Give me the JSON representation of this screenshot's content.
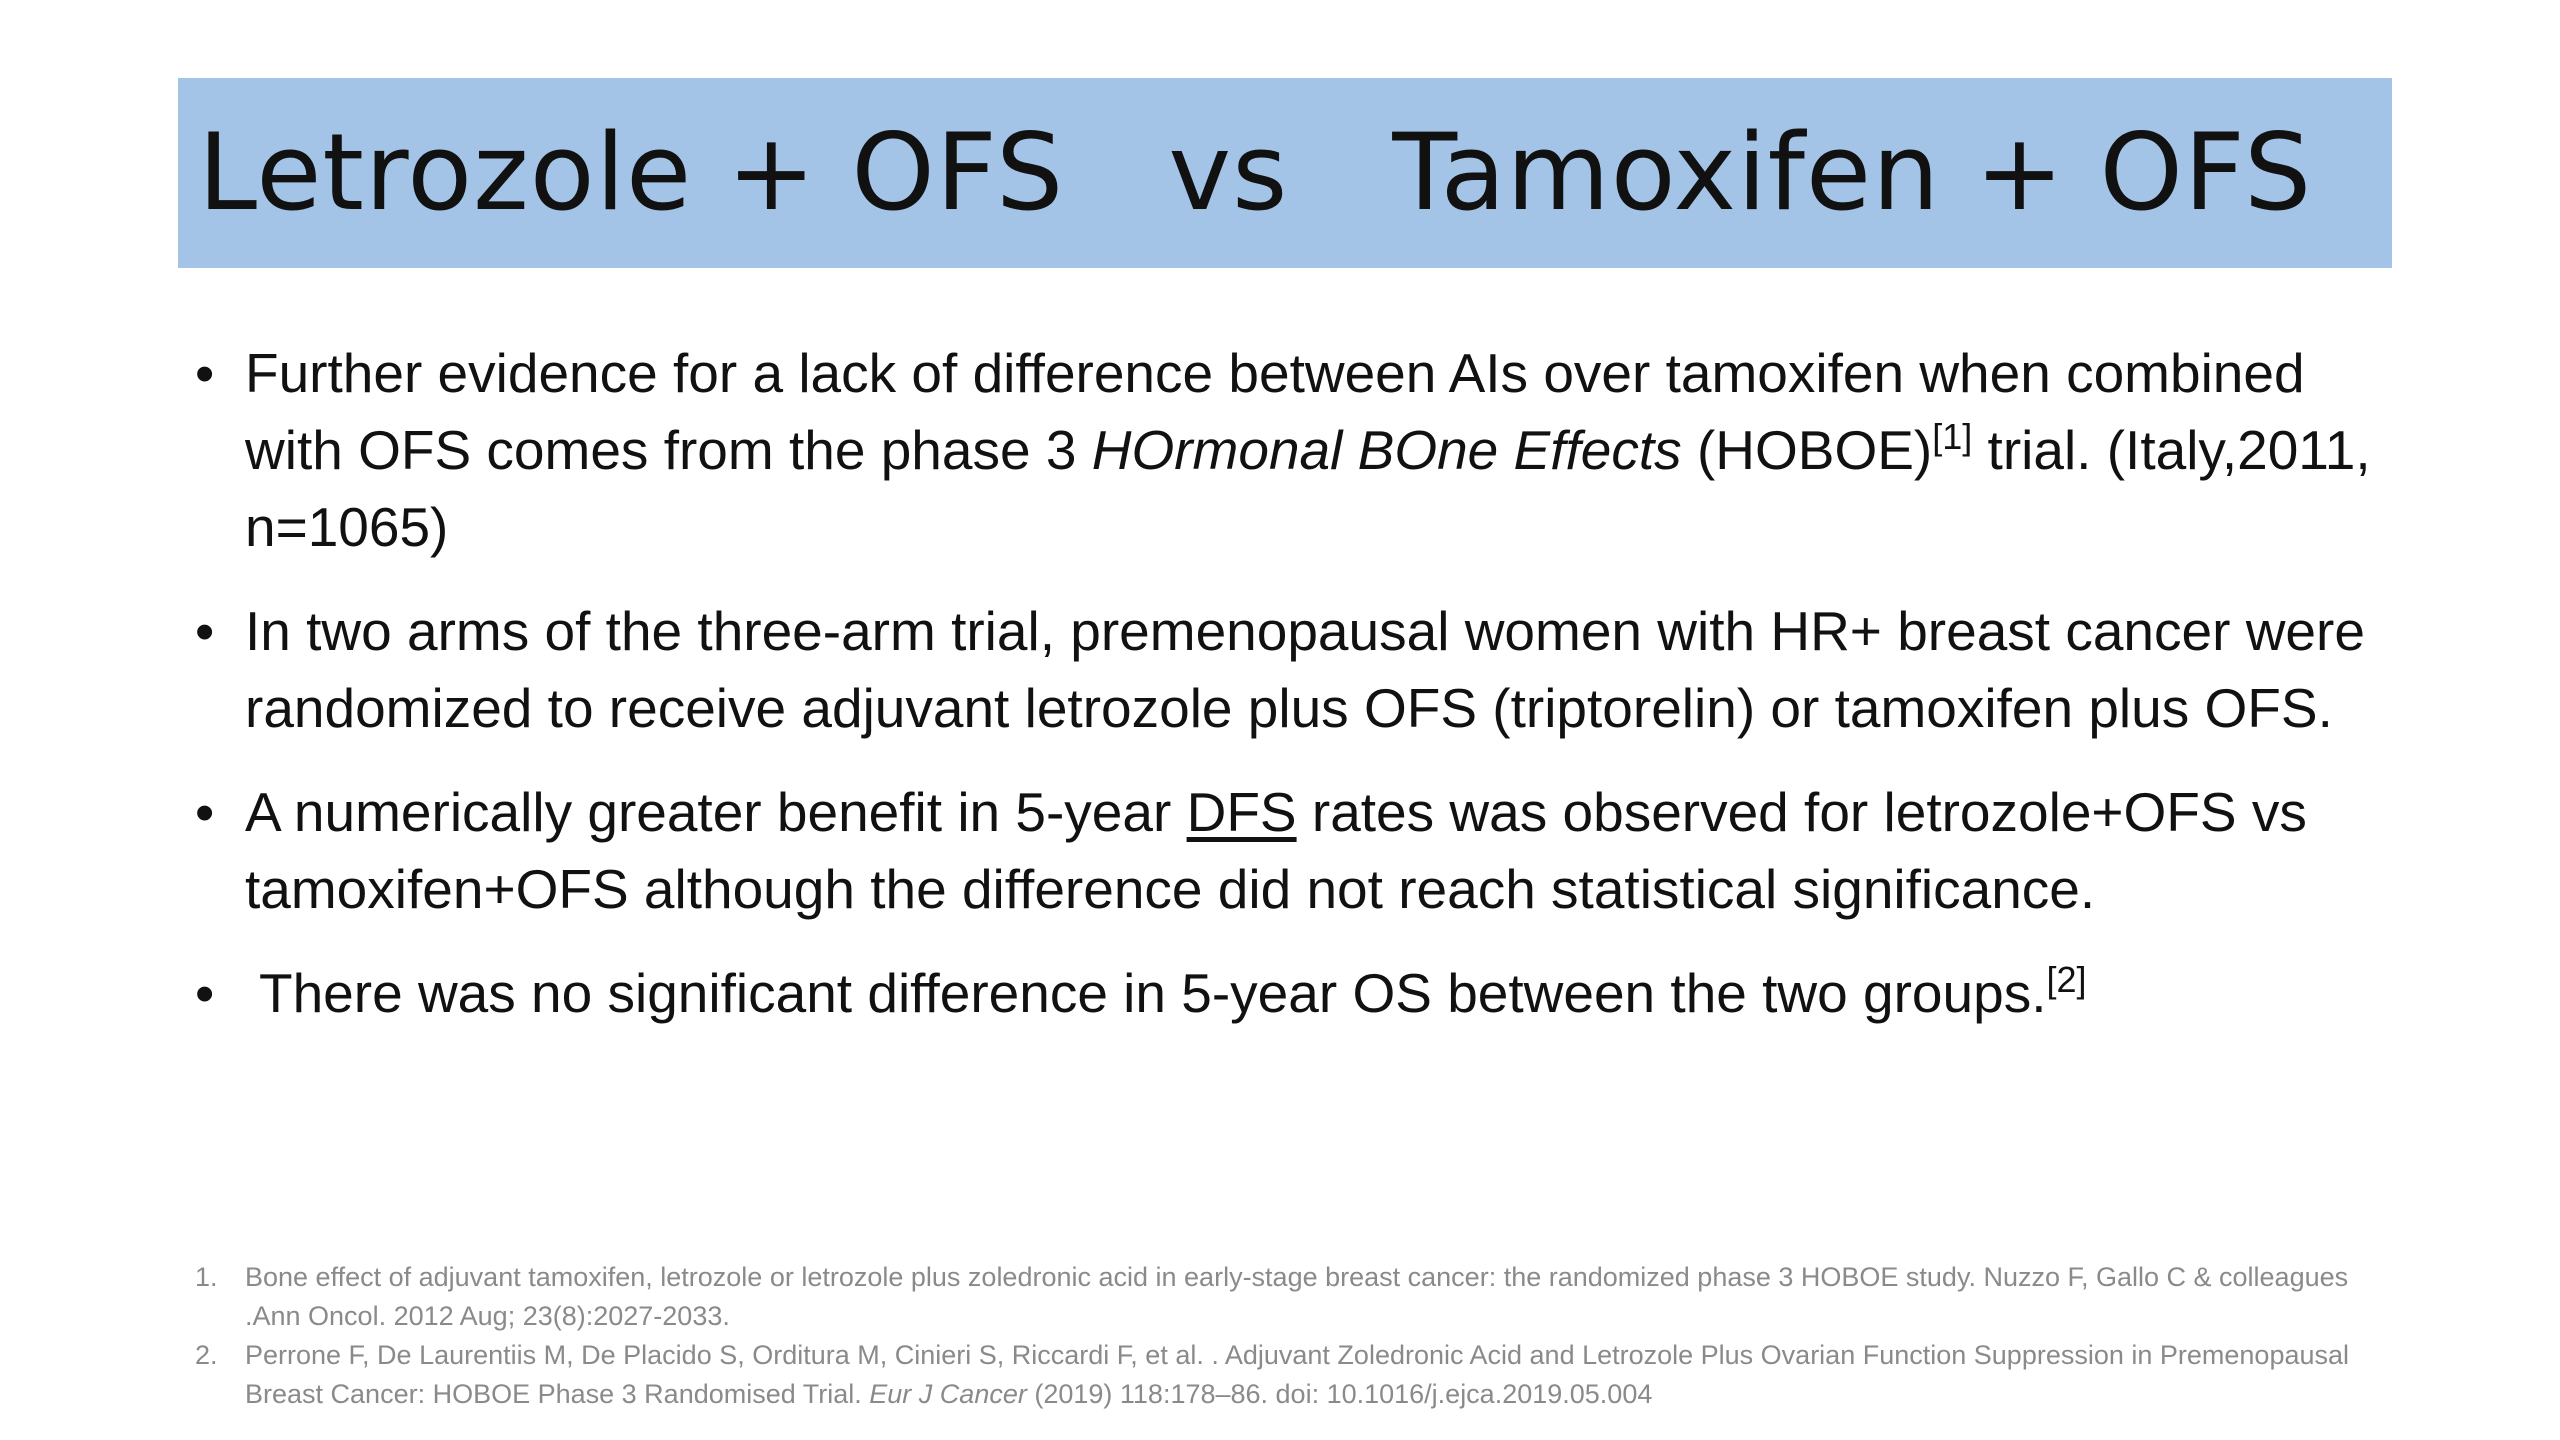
{
  "slide": {
    "title": "Letrozole + OFS   vs   Tamoxifen + OFS",
    "bullets": [
      {
        "p1": "Further evidence for a lack of difference between AIs over tamoxifen when combined with OFS comes from the phase 3 ",
        "italic": "HOrmonal BOne Effects",
        "p2": " (HOBOE)",
        "ref": "[1]",
        "p3": " trial. (Italy,2011, n=1065)"
      },
      {
        "text": "In two arms of the three-arm trial, premenopausal women with HR+ breast cancer were randomized to receive adjuvant letrozole plus OFS (triptorelin) or tamoxifen plus OFS."
      },
      {
        "p1": "A numerically greater benefit in 5-year ",
        "underline": "DFS",
        "p2": " rates was observed for letrozole+OFS vs tamoxifen+OFS although the difference did not reach statistical significance."
      },
      {
        "text": "There was no significant difference in 5-year OS between the two groups.",
        "ref": "[2]"
      }
    ],
    "references": [
      {
        "num": "1.",
        "text": "Bone effect of adjuvant tamoxifen, letrozole or letrozole plus zoledronic acid in early-stage breast cancer: the randomized phase 3 HOBOE study. Nuzzo F, Gallo C & colleagues .Ann Oncol. 2012 Aug; 23(8):2027-2033."
      },
      {
        "num": "2.",
        "p1": "Perrone F, De Laurentiis M, De Placido S, Orditura M, Cinieri S, Riccardi F, et al. . Adjuvant Zoledronic Acid and Letrozole Plus Ovarian Function Suppression in Premenopausal Breast Cancer: HOBOE Phase 3 Randomised Trial. ",
        "italic": "Eur J Cancer",
        "p2": " (2019) 118:178–86. doi: 10.1016/j.ejca.2019.05.004"
      }
    ]
  },
  "colors": {
    "title_bar": "#a3c4e6",
    "text": "#111111",
    "references": "#8a8a8a"
  }
}
